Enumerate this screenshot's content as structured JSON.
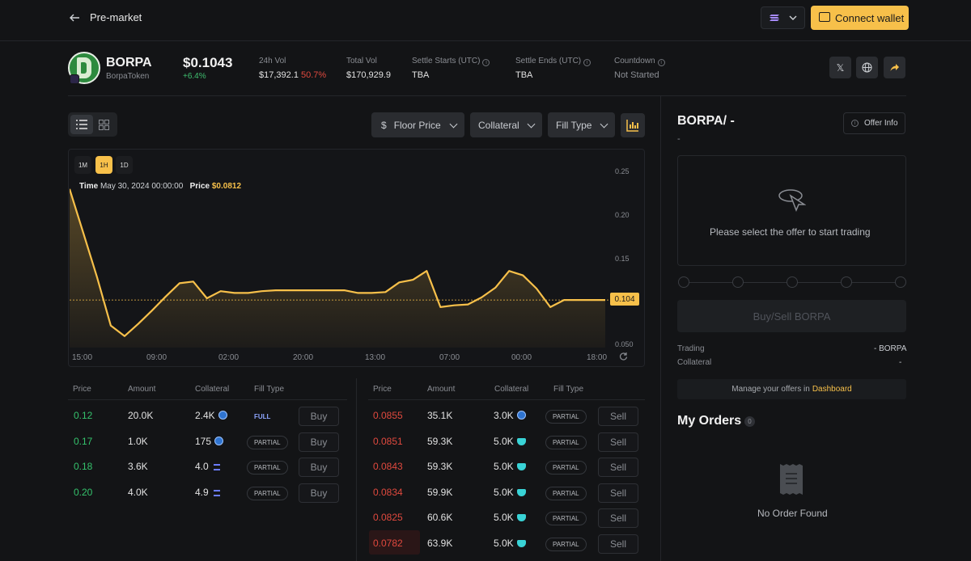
{
  "header": {
    "title": "Pre-market",
    "connect_label": "Connect wallet"
  },
  "token": {
    "symbol": "BORPA",
    "name": "BorpaToken",
    "price": "$0.1043",
    "change": "+6.4%"
  },
  "stats": [
    {
      "label": "24h Vol",
      "value": "$17,392.1",
      "extra": "50.7%"
    },
    {
      "label": "Total Vol",
      "value": "$170,929.9"
    },
    {
      "label": "Settle Starts (UTC)",
      "value": "TBA"
    },
    {
      "label": "Settle Ends (UTC)",
      "value": "TBA"
    },
    {
      "label": "Countdown",
      "value": "Not Started"
    }
  ],
  "toolbar": {
    "floor_price": "Floor Price",
    "collateral": "Collateral",
    "fill_type": "Fill Type"
  },
  "timeframes": [
    "1M",
    "1H",
    "1D"
  ],
  "tooltip": {
    "time_label": "Time",
    "time_value": "May 30, 2024 00:00:00",
    "price_label": "Price",
    "price_value": "$0.0812"
  },
  "chart_data": {
    "type": "area",
    "x_ticks": [
      "15:00",
      "09:00",
      "02:00",
      "20:00",
      "13:00",
      "07:00",
      "00:00",
      "18:00"
    ],
    "y_ticks": [
      "0.25",
      "0.20",
      "0.15",
      "0.10",
      "0.050"
    ],
    "ylim": [
      0.05,
      0.25
    ],
    "last_price": "0.104",
    "series": [
      {
        "values": [
          0.23,
          0.18,
          0.13,
          0.075,
          0.063,
          0.077,
          0.092,
          0.108,
          0.123,
          0.125,
          0.106,
          0.114,
          0.112,
          0.112,
          0.114,
          0.115,
          0.115,
          0.115,
          0.115,
          0.115,
          0.115,
          0.112,
          0.112,
          0.113,
          0.124,
          0.127,
          0.137,
          0.096,
          0.098,
          0.099,
          0.107,
          0.118,
          0.137,
          0.132,
          0.117,
          0.096,
          0.104,
          0.104,
          0.104,
          0.104
        ]
      }
    ],
    "grid": false
  },
  "buy_table": {
    "headers": [
      "Price",
      "Amount",
      "Collateral",
      "Fill Type"
    ],
    "action": "Buy",
    "rows": [
      {
        "price": "0.12",
        "amount": "20.0K",
        "collateral": "2.4K",
        "coin": "usdc",
        "fill": "FULL"
      },
      {
        "price": "0.17",
        "amount": "1.0K",
        "collateral": "175",
        "coin": "usdc",
        "fill": "PARTIAL"
      },
      {
        "price": "0.18",
        "amount": "3.6K",
        "collateral": "4.0",
        "coin": "sol",
        "fill": "PARTIAL"
      },
      {
        "price": "0.20",
        "amount": "4.0K",
        "collateral": "4.9",
        "coin": "sol",
        "fill": "PARTIAL"
      }
    ]
  },
  "sell_table": {
    "headers": [
      "Price",
      "Amount",
      "Collateral",
      "Fill Type"
    ],
    "action": "Sell",
    "rows": [
      {
        "price": "0.0855",
        "amount": "35.1K",
        "collateral": "3.0K",
        "coin": "usdc",
        "fill": "PARTIAL"
      },
      {
        "price": "0.0851",
        "amount": "59.3K",
        "collateral": "5.0K",
        "coin": "gem",
        "fill": "PARTIAL"
      },
      {
        "price": "0.0843",
        "amount": "59.3K",
        "collateral": "5.0K",
        "coin": "gem",
        "fill": "PARTIAL"
      },
      {
        "price": "0.0834",
        "amount": "59.9K",
        "collateral": "5.0K",
        "coin": "gem",
        "fill": "PARTIAL"
      },
      {
        "price": "0.0825",
        "amount": "60.6K",
        "collateral": "5.0K",
        "coin": "gem",
        "fill": "PARTIAL"
      },
      {
        "price": "0.0782",
        "amount": "63.9K",
        "collateral": "5.0K",
        "coin": "gem",
        "fill": "PARTIAL"
      }
    ]
  },
  "trade_panel": {
    "pair": "BORPA/ -",
    "pair_sub": "-",
    "offer_info": "Offer Info",
    "empty_text": "Please select the offer to start trading",
    "action": "Buy/Sell BORPA",
    "trading_label": "Trading",
    "trading_value": "- BORPA",
    "collateral_label": "Collateral",
    "collateral_value": "-",
    "manage_text": "Manage your offers in",
    "dashboard_link": "Dashboard"
  },
  "orders": {
    "title": "My Orders",
    "count": "0",
    "empty": "No Order Found"
  },
  "colors": {
    "accent": "#f7c04a",
    "buy": "#35c26c",
    "sell": "#e0493e",
    "background": "#131416"
  }
}
